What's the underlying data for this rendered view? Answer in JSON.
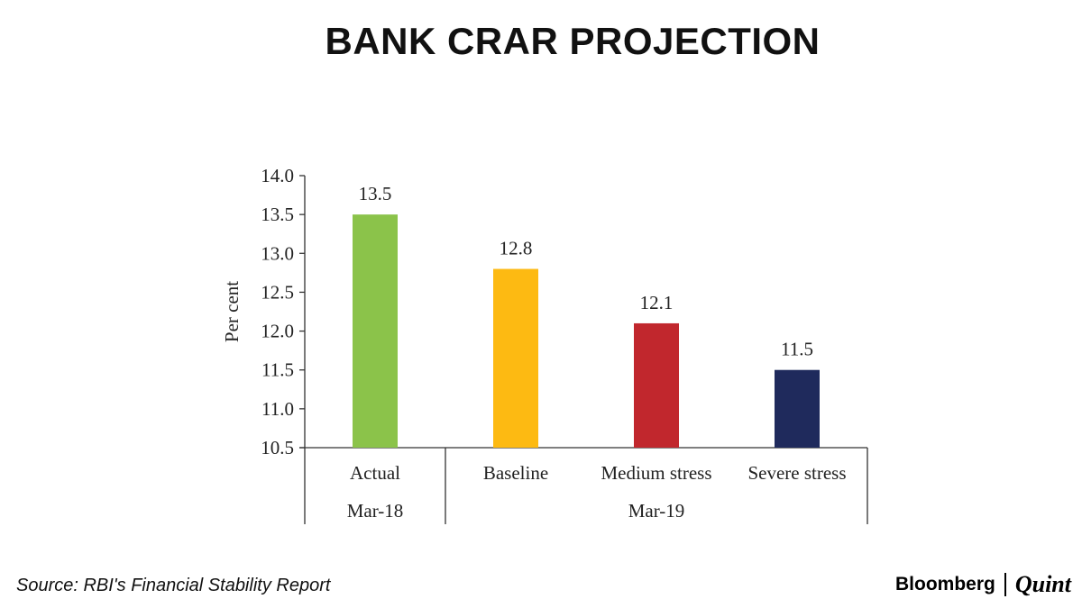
{
  "title": "BANK CRAR PROJECTION",
  "source": "Source: RBI's Financial Stability Report",
  "logo": {
    "brand": "Bloomberg",
    "partner": "Quint"
  },
  "chart_data": {
    "type": "bar",
    "title": "BANK CRAR PROJECTION",
    "ylabel": "Per cent",
    "xlabel": "",
    "ylim": [
      10.5,
      14.0
    ],
    "yticks": [
      "14.0",
      "13.5",
      "13.0",
      "12.5",
      "12.0",
      "11.5",
      "11.0",
      "10.5"
    ],
    "categories": [
      "Actual",
      "Baseline",
      "Medium stress",
      "Severe stress"
    ],
    "values": [
      13.5,
      12.8,
      12.1,
      11.5
    ],
    "data_labels": [
      "13.5",
      "12.8",
      "12.1",
      "11.5"
    ],
    "colors": [
      "#8bc34a",
      "#fdba12",
      "#c1272d",
      "#1f2a5c"
    ],
    "groups": [
      {
        "label": "Mar-18",
        "categories": [
          "Actual"
        ]
      },
      {
        "label": "Mar-19",
        "categories": [
          "Baseline",
          "Medium stress",
          "Severe stress"
        ]
      }
    ],
    "grid": false,
    "legend": "none"
  }
}
